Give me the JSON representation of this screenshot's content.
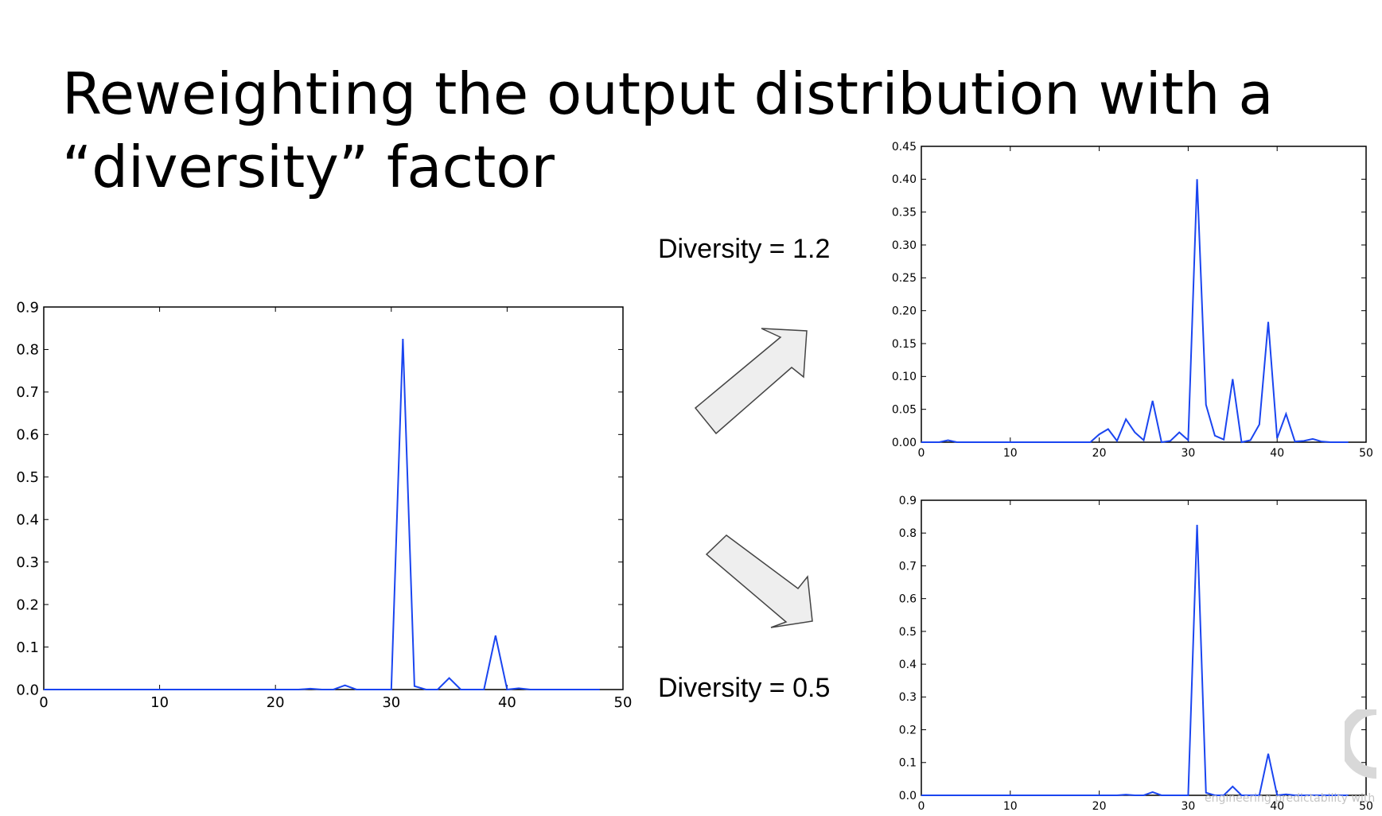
{
  "slide": {
    "title_line1": "Reweighting the output distribution with a",
    "title_line2": "“diversity” factor",
    "label_high": "Diversity = 1.2",
    "label_low": "Diversity = 0.5",
    "watermark": "engineering predictability with",
    "arrow_fill": "#eeeeee",
    "arrow_stroke": "#444444",
    "line_color": "#1a45f0"
  },
  "chart_data": [
    {
      "id": "original",
      "type": "line",
      "title": "",
      "xlabel": "",
      "ylabel": "",
      "xlim": [
        0,
        50
      ],
      "ylim": [
        0,
        0.9
      ],
      "xticks": [
        0,
        10,
        20,
        30,
        40,
        50
      ],
      "yticks": [
        0.0,
        0.1,
        0.2,
        0.3,
        0.4,
        0.5,
        0.6,
        0.7,
        0.8,
        0.9
      ],
      "ytick_labels": [
        "0.0",
        "0.1",
        "0.2",
        "0.3",
        "0.4",
        "0.5",
        "0.6",
        "0.7",
        "0.8",
        "0.9"
      ],
      "series": [
        {
          "x": [
            0,
            1,
            2,
            3,
            4,
            5,
            6,
            7,
            8,
            9,
            10,
            11,
            12,
            13,
            14,
            15,
            16,
            17,
            18,
            19,
            20,
            21,
            22,
            23,
            24,
            25,
            26,
            27,
            28,
            29,
            30,
            31,
            32,
            33,
            34,
            35,
            36,
            37,
            38,
            39,
            40,
            41,
            42,
            43,
            44,
            45,
            46,
            47,
            48
          ],
          "values": [
            0,
            0,
            0,
            0,
            0,
            0,
            0,
            0,
            0,
            0,
            0,
            0,
            0,
            0,
            0,
            0,
            0,
            0,
            0,
            0,
            0,
            0,
            0,
            0.002,
            0,
            0,
            0.01,
            0,
            0,
            0,
            0,
            0.825,
            0.008,
            0,
            0,
            0.027,
            0,
            0,
            0,
            0.127,
            0,
            0.003,
            0,
            0,
            0,
            0,
            0,
            0,
            0
          ]
        }
      ]
    },
    {
      "id": "diversity-1.2",
      "type": "line",
      "title": "",
      "xlabel": "",
      "ylabel": "",
      "xlim": [
        0,
        50
      ],
      "ylim": [
        0,
        0.45
      ],
      "xticks": [
        0,
        10,
        20,
        30,
        40,
        50
      ],
      "yticks": [
        0.0,
        0.05,
        0.1,
        0.15,
        0.2,
        0.25,
        0.3,
        0.35,
        0.4,
        0.45
      ],
      "ytick_labels": [
        "0.00",
        "0.05",
        "0.10",
        "0.15",
        "0.20",
        "0.25",
        "0.30",
        "0.35",
        "0.40",
        "0.45"
      ],
      "series": [
        {
          "x": [
            0,
            1,
            2,
            3,
            4,
            5,
            6,
            7,
            8,
            9,
            10,
            11,
            12,
            13,
            14,
            15,
            16,
            17,
            18,
            19,
            20,
            21,
            22,
            23,
            24,
            25,
            26,
            27,
            28,
            29,
            30,
            31,
            32,
            33,
            34,
            35,
            36,
            37,
            38,
            39,
            40,
            41,
            42,
            43,
            44,
            45,
            46,
            47,
            48
          ],
          "values": [
            0,
            0,
            0,
            0.003,
            0,
            0,
            0,
            0,
            0,
            0,
            0,
            0,
            0,
            0,
            0,
            0,
            0,
            0,
            0,
            0,
            0.012,
            0.02,
            0.002,
            0.035,
            0.015,
            0.003,
            0.063,
            0,
            0.002,
            0.015,
            0.003,
            0.4,
            0.057,
            0.01,
            0.004,
            0.096,
            0,
            0.003,
            0.027,
            0.183,
            0.006,
            0.043,
            0.001,
            0.002,
            0.005,
            0.001,
            0,
            0,
            0
          ]
        }
      ]
    },
    {
      "id": "diversity-0.5",
      "type": "line",
      "title": "",
      "xlabel": "",
      "ylabel": "",
      "xlim": [
        0,
        50
      ],
      "ylim": [
        0,
        0.9
      ],
      "xticks": [
        0,
        10,
        20,
        30,
        40,
        50
      ],
      "yticks": [
        0.0,
        0.1,
        0.2,
        0.3,
        0.4,
        0.5,
        0.6,
        0.7,
        0.8,
        0.9
      ],
      "ytick_labels": [
        "0.0",
        "0.1",
        "0.2",
        "0.3",
        "0.4",
        "0.5",
        "0.6",
        "0.7",
        "0.8",
        "0.9"
      ],
      "series": [
        {
          "x": [
            0,
            1,
            2,
            3,
            4,
            5,
            6,
            7,
            8,
            9,
            10,
            11,
            12,
            13,
            14,
            15,
            16,
            17,
            18,
            19,
            20,
            21,
            22,
            23,
            24,
            25,
            26,
            27,
            28,
            29,
            30,
            31,
            32,
            33,
            34,
            35,
            36,
            37,
            38,
            39,
            40,
            41,
            42,
            43,
            44,
            45,
            46,
            47,
            48
          ],
          "values": [
            0,
            0,
            0,
            0,
            0,
            0,
            0,
            0,
            0,
            0,
            0,
            0,
            0,
            0,
            0,
            0,
            0,
            0,
            0,
            0,
            0,
            0,
            0,
            0.002,
            0,
            0,
            0.01,
            0,
            0,
            0,
            0,
            0.825,
            0.008,
            0,
            0,
            0.027,
            0,
            0,
            0,
            0.127,
            0,
            0.003,
            0,
            0,
            0,
            0,
            0,
            0,
            0
          ]
        }
      ]
    }
  ]
}
